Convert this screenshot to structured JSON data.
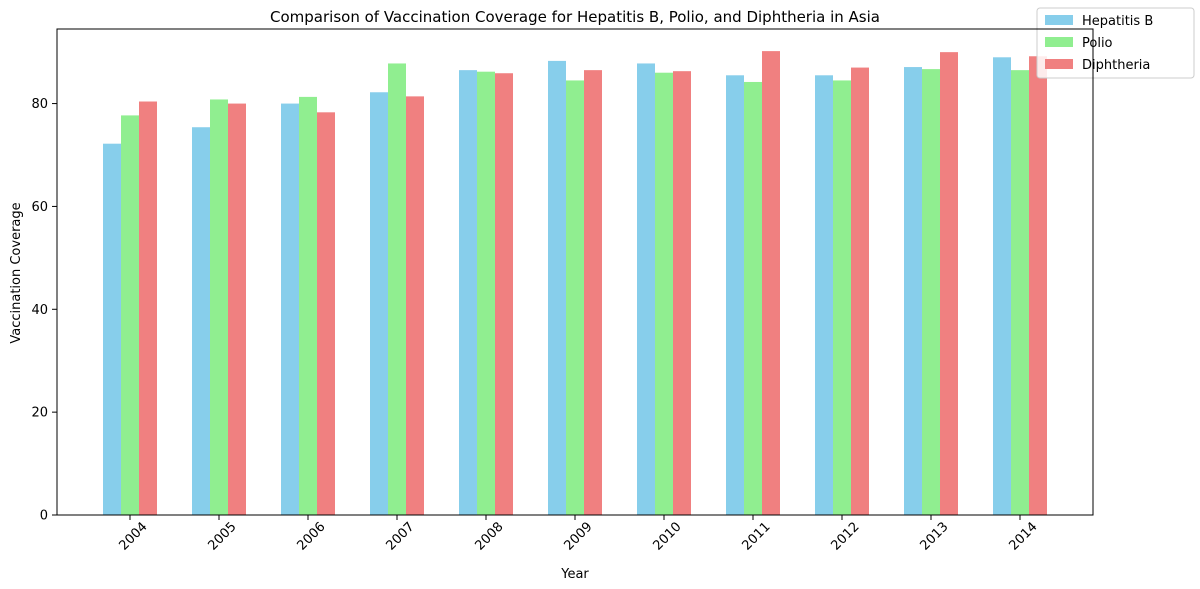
{
  "chart_data": {
    "type": "bar",
    "title": "Comparison of Vaccination Coverage for Hepatitis B, Polio, and Diphtheria in Asia",
    "xlabel": "Year",
    "ylabel": "Vaccination Coverage",
    "ylim": [
      0,
      94.5
    ],
    "yticks": [
      "0",
      "20",
      "40",
      "60",
      "80"
    ],
    "yticks_values": [
      0,
      20,
      40,
      60,
      80
    ],
    "categories": [
      "2004",
      "2005",
      "2006",
      "2007",
      "2008",
      "2009",
      "2010",
      "2011",
      "2012",
      "2013",
      "2014"
    ],
    "series": [
      {
        "name": "Hepatitis B",
        "color": "#87ceeb",
        "values": [
          72.2,
          75.4,
          80.0,
          82.2,
          86.5,
          88.3,
          87.8,
          85.5,
          85.5,
          87.1,
          89.0
        ]
      },
      {
        "name": "Polio",
        "color": "#90ee90",
        "values": [
          77.7,
          80.8,
          81.3,
          87.8,
          86.2,
          84.5,
          86.0,
          84.2,
          84.5,
          86.7,
          86.5
        ]
      },
      {
        "name": "Diphtheria",
        "color": "#f08080",
        "values": [
          80.4,
          80.0,
          78.3,
          81.4,
          85.9,
          86.5,
          86.3,
          90.2,
          87.0,
          90.0,
          89.2
        ]
      }
    ],
    "legend": "top-right",
    "grid": false
  }
}
